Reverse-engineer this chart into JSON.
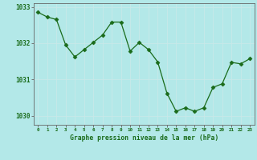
{
  "x": [
    0,
    1,
    2,
    3,
    4,
    5,
    6,
    7,
    8,
    9,
    10,
    11,
    12,
    13,
    14,
    15,
    16,
    17,
    18,
    19,
    20,
    21,
    22,
    23
  ],
  "y": [
    1032.85,
    1032.72,
    1032.65,
    1031.95,
    1031.62,
    1031.82,
    1032.02,
    1032.22,
    1032.58,
    1032.58,
    1031.78,
    1032.02,
    1031.82,
    1031.48,
    1030.62,
    1030.12,
    1030.22,
    1030.12,
    1030.22,
    1030.78,
    1030.88,
    1031.47,
    1031.43,
    1031.57
  ],
  "line_color": "#1a6b1a",
  "marker": "D",
  "marker_size": 2.5,
  "bg_color": "#b3e8e8",
  "grid_color": "#d0f0f0",
  "tick_color": "#1a6b1a",
  "label_color": "#1a6b1a",
  "xlabel": "Graphe pression niveau de la mer (hPa)",
  "yticks": [
    1030,
    1031,
    1032,
    1033
  ],
  "xticks": [
    0,
    1,
    2,
    3,
    4,
    5,
    6,
    7,
    8,
    9,
    10,
    11,
    12,
    13,
    14,
    15,
    16,
    17,
    18,
    19,
    20,
    21,
    22,
    23
  ],
  "ylim": [
    1029.75,
    1033.1
  ],
  "xlim": [
    -0.5,
    23.5
  ]
}
